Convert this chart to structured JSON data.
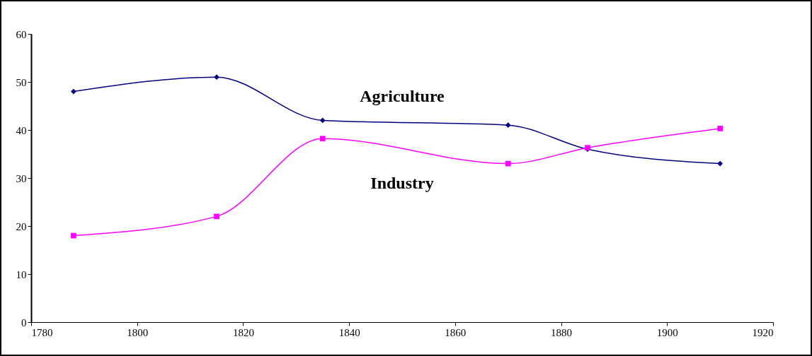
{
  "chart_data": {
    "type": "line",
    "x": [
      1788,
      1815,
      1835,
      1870,
      1885,
      1910
    ],
    "series": [
      {
        "name": "Agriculture",
        "color": "#000080",
        "marker": "diamond",
        "values": [
          48,
          51,
          42,
          41,
          36,
          33
        ]
      },
      {
        "name": "Industry",
        "color": "#ff00ff",
        "marker": "square",
        "values": [
          18,
          22,
          38.2,
          33,
          36.3,
          40.3
        ]
      }
    ],
    "xlim": [
      1780,
      1920
    ],
    "xticks": [
      1780,
      1800,
      1820,
      1840,
      1860,
      1880,
      1900,
      1920
    ],
    "ylim": [
      0,
      60
    ],
    "yticks": [
      0,
      10,
      20,
      30,
      40,
      50,
      60
    ],
    "grid": false
  }
}
